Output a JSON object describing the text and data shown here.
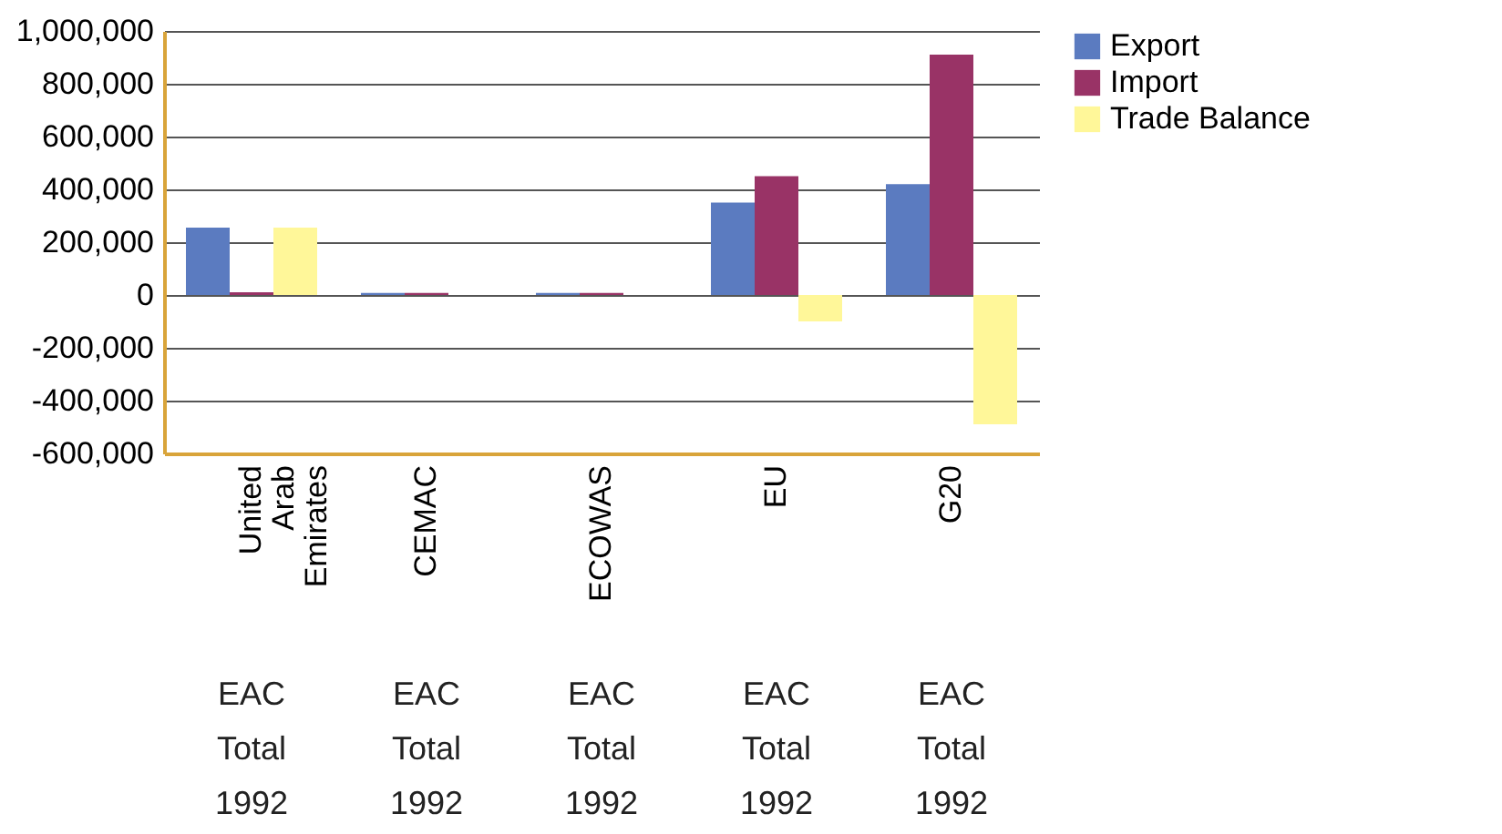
{
  "chart_data": {
    "type": "bar",
    "categories": [
      "United Arab Emirates",
      "CEMAC",
      "ECOWAS",
      "EU",
      "G20"
    ],
    "series": [
      {
        "name": "Export",
        "color": "#5b7bc0",
        "values": [
          255000,
          8000,
          8000,
          350000,
          420000
        ]
      },
      {
        "name": "Import",
        "color": "#993366",
        "values": [
          10000,
          8000,
          8000,
          450000,
          910000
        ]
      },
      {
        "name": "Trade Balance",
        "color": "#fff799",
        "values": [
          255000,
          null,
          null,
          -100000,
          -490000
        ]
      }
    ],
    "ylim": [
      -600000,
      1000000
    ],
    "yticks": [
      {
        "value": -600000,
        "label": "-600,000"
      },
      {
        "value": -400000,
        "label": "-400,000"
      },
      {
        "value": -200000,
        "label": "-200,000"
      },
      0,
      {
        "value": 200000,
        "label": "200,000"
      },
      {
        "value": 400000,
        "label": "400,000"
      },
      {
        "value": 600000,
        "label": "600,000"
      },
      {
        "value": 800000,
        "label": "800,000"
      },
      {
        "value": 1000000,
        "label": "1,000,000"
      }
    ],
    "grid": "y",
    "legend": "right",
    "annotations": [
      "EAC Total 1992",
      "EAC Total 1992",
      "EAC Total 1992",
      "EAC Total 1992",
      "EAC Total 1992"
    ]
  }
}
